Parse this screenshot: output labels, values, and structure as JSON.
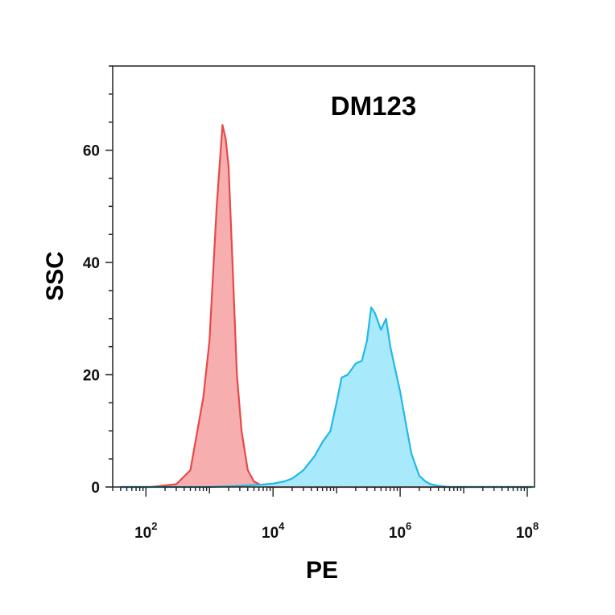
{
  "chart_data": {
    "type": "area",
    "title": "DM123",
    "xlabel": "PE",
    "ylabel": "SSC",
    "x_scale": "log",
    "xlim": [
      30,
      130000000
    ],
    "ylim": [
      0,
      75
    ],
    "x_tick_labels": [
      {
        "base": "10",
        "exp": "2",
        "value": 100
      },
      {
        "base": "10",
        "exp": "4",
        "value": 10000
      },
      {
        "base": "10",
        "exp": "6",
        "value": 1000000
      },
      {
        "base": "10",
        "exp": "8",
        "value": 100000000
      }
    ],
    "y_ticks": [
      0,
      20,
      40,
      60
    ],
    "grid": false,
    "legend": "none",
    "series": [
      {
        "color": "#e84848",
        "fill": "#f6a5a5",
        "x": [
          40,
          120,
          300,
          500,
          800,
          1000,
          1300,
          1600,
          1800,
          2000,
          2300,
          2700,
          3200,
          4000,
          5000,
          6500,
          8500,
          12000,
          30000,
          200000,
          2000000,
          20000000,
          120000000
        ],
        "y": [
          0,
          0,
          0.5,
          3,
          16,
          26,
          50,
          64.5,
          62,
          57,
          40,
          20,
          10,
          3,
          1,
          0.3,
          0,
          0,
          0,
          0,
          0,
          0,
          0
        ]
      },
      {
        "color": "#22b8e8",
        "fill": "#9fe7fb",
        "x": [
          40,
          1000,
          3000,
          6000,
          10000,
          15000,
          20000,
          30000,
          45000,
          60000,
          80000,
          100000,
          120000,
          150000,
          200000,
          250000,
          300000,
          350000,
          400000,
          500000,
          600000,
          700000,
          800000,
          1000000,
          1200000,
          1500000,
          2000000,
          2500000,
          3000000,
          4000000,
          6000000,
          10000000,
          20000000,
          120000000
        ],
        "y": [
          0,
          0,
          0.2,
          0.4,
          0.6,
          1,
          1.5,
          3,
          5.5,
          8,
          10,
          15,
          19.5,
          20,
          22,
          22.5,
          26,
          32,
          31,
          28,
          30,
          25,
          22,
          17,
          12,
          6,
          2,
          1,
          0.5,
          0.2,
          0,
          0,
          0,
          0
        ]
      }
    ]
  }
}
